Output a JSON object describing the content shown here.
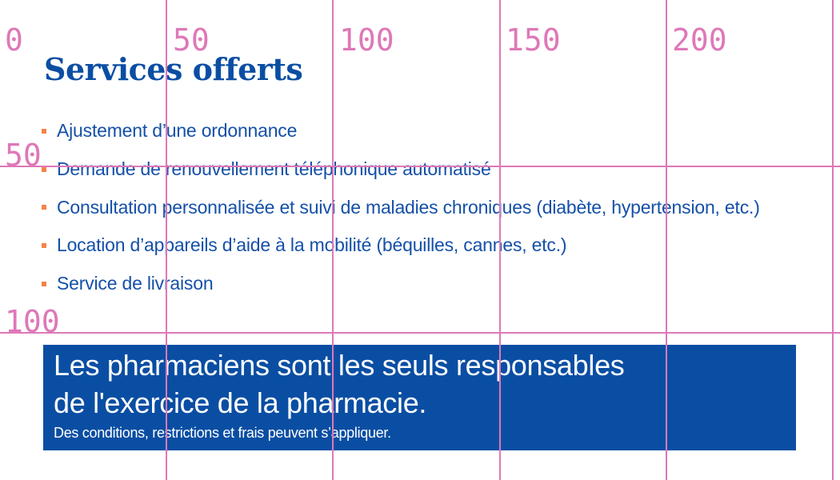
{
  "heading": "Services offerts",
  "services": [
    "Ajustement d’une ordonnance",
    "Demande de renouvellement téléphonique automatisé",
    "Consultation personnalisée et suivi de maladies chroniques (diabète, hypertension, etc.)",
    "Location d’appareils d’aide à la mobilité (béquilles, cannes, etc.)",
    "Service de livraison"
  ],
  "banner": {
    "line1": "Les pharmaciens sont les seuls responsables",
    "line2": "de l'exercice de la pharmacie.",
    "note": "Des conditions, restrictions et frais peuvent s’appliquer."
  },
  "grid_overlay": {
    "x_labels": [
      "0",
      "50",
      "100",
      "150",
      "200"
    ],
    "y_labels": [
      "50",
      "100"
    ],
    "color": "#de78b8"
  },
  "colors": {
    "brand_blue": "#0a4ea3",
    "bullet_orange": "#f4844a"
  }
}
